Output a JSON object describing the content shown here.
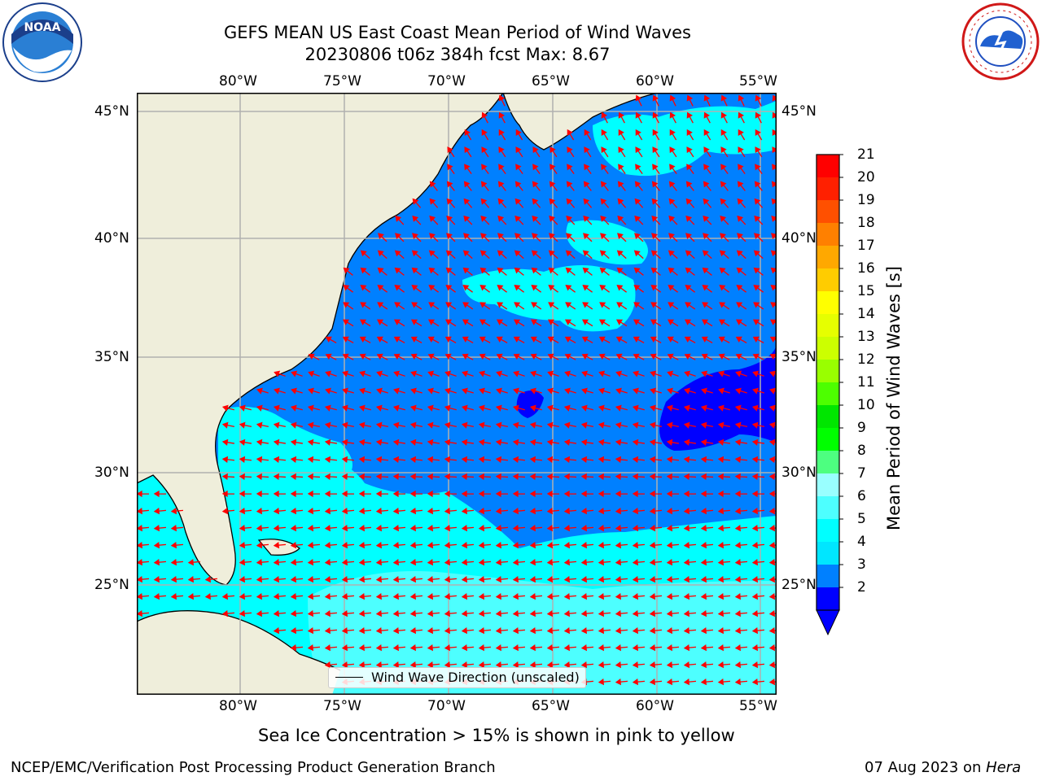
{
  "title": {
    "line1": "GEFS MEAN US East Coast Mean Period of Wind Waves",
    "line2": "20230806 t06z 384h fcst   Max: 8.67"
  },
  "logos": {
    "left": {
      "icon": "noaa-logo",
      "text": "NOAA"
    },
    "right": {
      "icon": "nws-logo",
      "text": "NATIONAL WEATHER SERVICE"
    }
  },
  "map": {
    "lon_labels": [
      "80°W",
      "75°W",
      "70°W",
      "65°W",
      "60°W",
      "55°W"
    ],
    "lat_labels": [
      "45°N",
      "40°N",
      "35°N",
      "30°N",
      "25°N"
    ],
    "legend_label": "Wind Wave Direction (unscaled)",
    "colors": {
      "land": "#efeedb",
      "level_2_4": "#0080ff",
      "level_4_6": "#00ffff",
      "level_6_8": "#4dffff",
      "below_2": "#0000ff",
      "arrows": "#ff0000",
      "grid": "#b0b0b0",
      "coastline": "#000000"
    }
  },
  "colorbar": {
    "label": "Mean Period of Wind Waves [s]",
    "ticks": [
      "21",
      "20",
      "19",
      "18",
      "17",
      "16",
      "15",
      "14",
      "13",
      "12",
      "11",
      "10",
      "9",
      "8",
      "7",
      "6",
      "5",
      "4",
      "3",
      "2"
    ],
    "colors": [
      "#ff0000",
      "#ff2000",
      "#ff5000",
      "#ff8000",
      "#ffa800",
      "#ffcc00",
      "#ffff00",
      "#e6ff00",
      "#ccff00",
      "#99ff00",
      "#4dff00",
      "#00e600",
      "#00ff00",
      "#4dff80",
      "#99ffff",
      "#4dffff",
      "#00ffff",
      "#00e6ff",
      "#0080ff",
      "#0000ff"
    ],
    "extend_color": "#0000ff"
  },
  "notes": {
    "sea_ice": "Sea Ice Concentration > 15% is shown in pink to yellow"
  },
  "footer": {
    "left": "NCEP/EMC/Verification Post Processing Product Generation Branch",
    "date": "07 Aug 2023 on ",
    "machine": "Hera"
  }
}
